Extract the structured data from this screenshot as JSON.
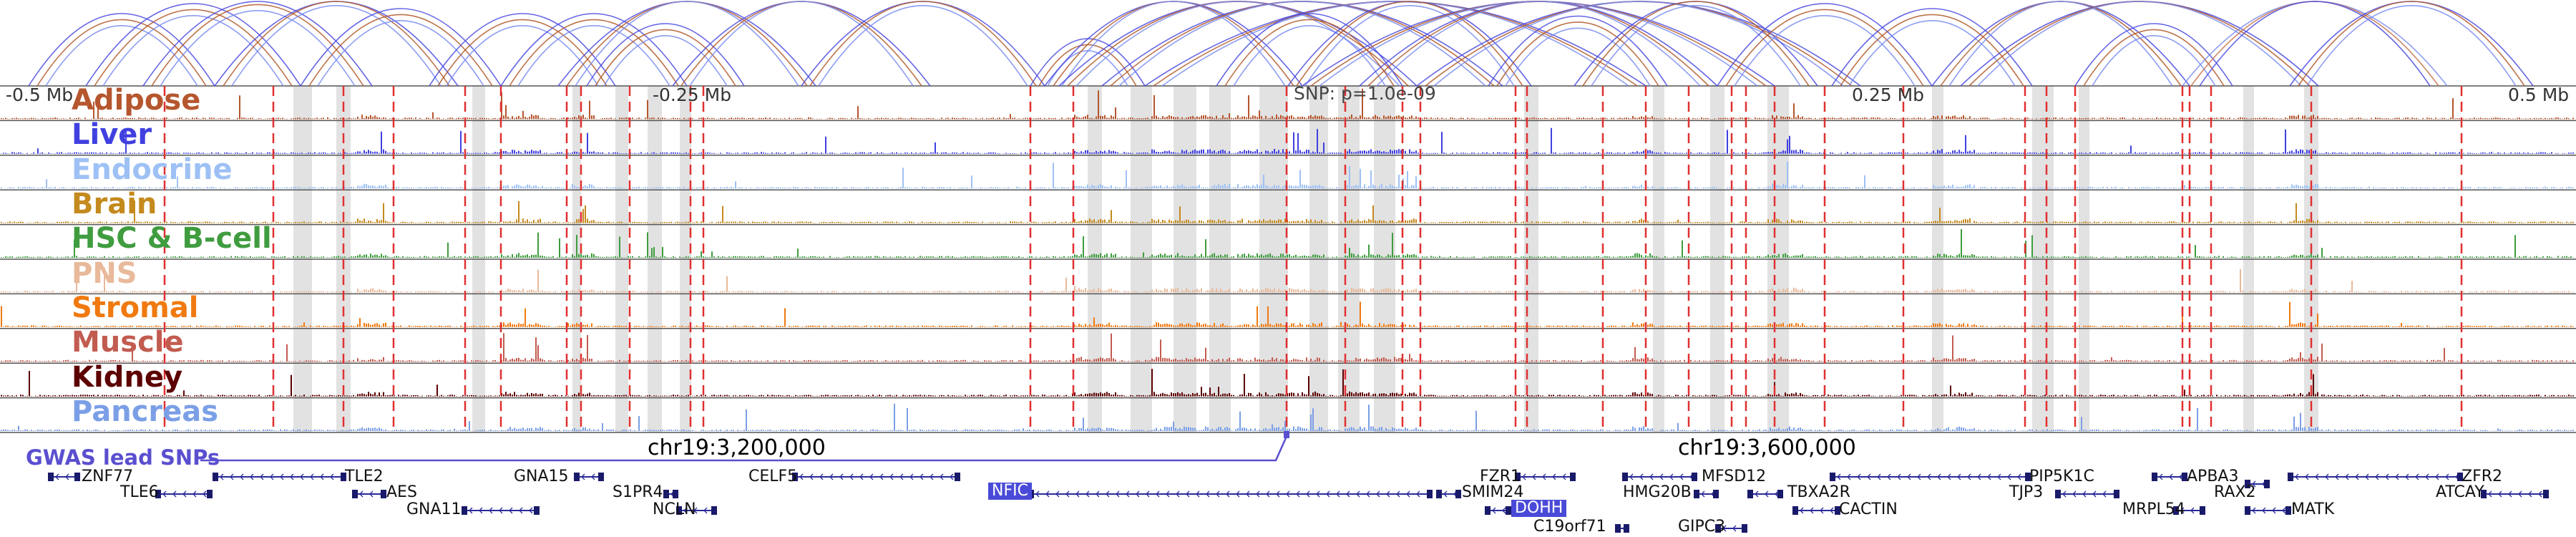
{
  "gwas_label": "GWAS lead SNPs",
  "snp_label": "SNP: p=1.0e-09",
  "tracks": [
    {
      "name": "Adipose",
      "color": "#b5562e"
    },
    {
      "name": "Liver",
      "color": "#4040e0"
    },
    {
      "name": "Endocrine",
      "color": "#9ec1f5"
    },
    {
      "name": "Brain",
      "color": "#c48a1e"
    },
    {
      "name": "HSC & B-cell",
      "color": "#3f9c3f"
    },
    {
      "name": "PNS",
      "color": "#e8b99a"
    },
    {
      "name": "Stromal",
      "color": "#f07a10"
    },
    {
      "name": "Muscle",
      "color": "#c25c50"
    },
    {
      "name": "Kidney",
      "color": "#5c0000"
    },
    {
      "name": "Pancreas",
      "color": "#7b9fe6"
    }
  ],
  "axis_ticks": [
    "-0.5 Mb",
    "-0.25 Mb",
    "0.25 Mb",
    "0.5 Mb"
  ],
  "coordinates": [
    "chr19:3,200,000",
    "chr19:3,600,000"
  ],
  "genes": [
    {
      "name": "ZNF77",
      "highlight": false
    },
    {
      "name": "TLE6",
      "highlight": false
    },
    {
      "name": "TLE2",
      "highlight": false
    },
    {
      "name": "AES",
      "highlight": false
    },
    {
      "name": "GNA11",
      "highlight": false
    },
    {
      "name": "GNA15",
      "highlight": false
    },
    {
      "name": "S1PR4",
      "highlight": false
    },
    {
      "name": "NCLN",
      "highlight": false
    },
    {
      "name": "CELF5",
      "highlight": false
    },
    {
      "name": "NFIC",
      "highlight": true
    },
    {
      "name": "SMIM24",
      "highlight": false
    },
    {
      "name": "FZR1",
      "highlight": false
    },
    {
      "name": "DOHH",
      "highlight": true
    },
    {
      "name": "C19orf71",
      "highlight": false
    },
    {
      "name": "MFSD12",
      "highlight": false
    },
    {
      "name": "HMG20B",
      "highlight": false
    },
    {
      "name": "GIPC3",
      "highlight": false
    },
    {
      "name": "TBXA2R",
      "highlight": false
    },
    {
      "name": "CACTIN",
      "highlight": false
    },
    {
      "name": "PIP5K1C",
      "highlight": false
    },
    {
      "name": "TJP3",
      "highlight": false
    },
    {
      "name": "APBA3",
      "highlight": false
    },
    {
      "name": "MRPL54",
      "highlight": false
    },
    {
      "name": "RAX2",
      "highlight": false
    },
    {
      "name": "MATK",
      "highlight": false
    },
    {
      "name": "ZFR2",
      "highlight": false
    },
    {
      "name": "ATCAY",
      "highlight": false
    }
  ]
}
